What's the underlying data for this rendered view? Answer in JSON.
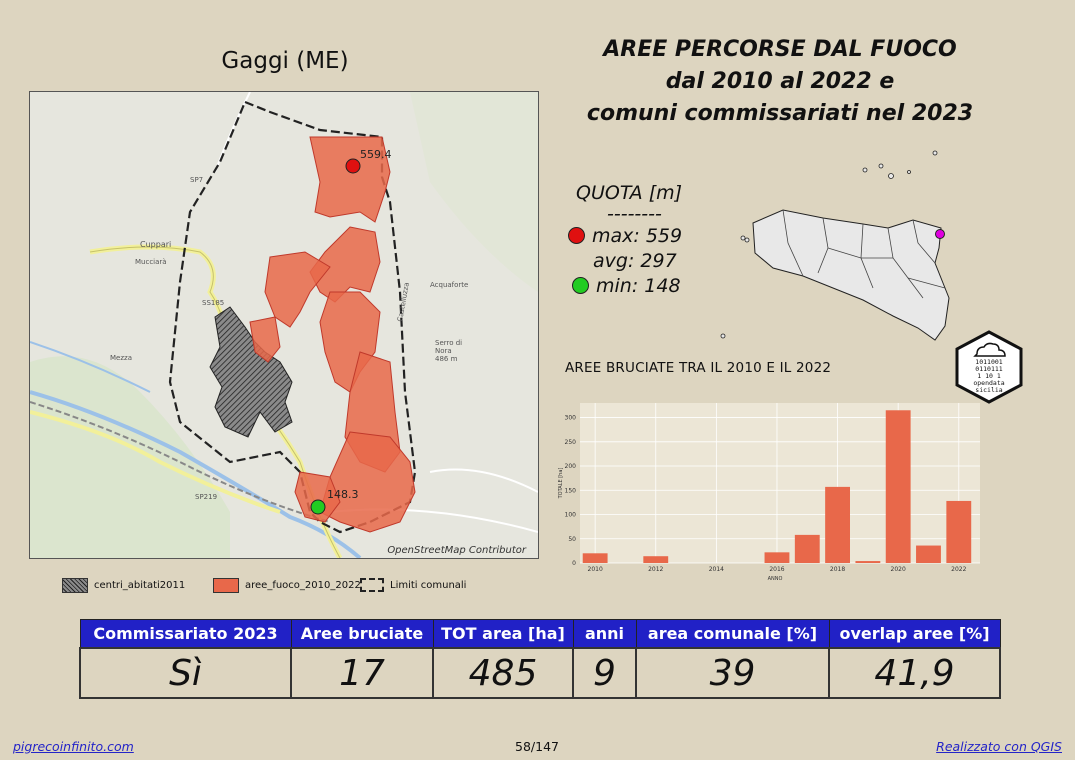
{
  "map": {
    "title": "Gaggi (ME)",
    "labels": [
      {
        "text": "559.4"
      },
      {
        "text": "148.3"
      },
      {
        "text": "SP7"
      },
      {
        "text": "Cuppari"
      },
      {
        "text": "Mucciarà"
      },
      {
        "text": "SS185"
      },
      {
        "text": "Acquaforte"
      },
      {
        "text": "Serro di"
      },
      {
        "text": "Nora"
      },
      {
        "text": "486 m"
      },
      {
        "text": "Mezza"
      },
      {
        "text": "SP219"
      },
      {
        "text": "Castelluzza"
      }
    ],
    "osm_credit": "OpenStreetMap Contributor"
  },
  "legend": {
    "items": [
      {
        "label": "centri_abitati2011",
        "swatch": "hatched-dark"
      },
      {
        "label": "aree_fuoco_2010_2022",
        "swatch": "#e8684a"
      },
      {
        "label": "Limiti comunali",
        "swatch": "dashed-outline"
      }
    ]
  },
  "main_title": {
    "line1": "AREE PERCORSE DAL FUOCO",
    "line2": "dal 2010 al 2022 e",
    "line3": "comuni commissariati nel 2023"
  },
  "quota": {
    "title": "QUOTA [m]",
    "separator": "--------",
    "max_label": "max: 559",
    "avg_label": "avg: 297",
    "min_label": "min: 148",
    "max_color": "#e01010",
    "min_color": "#22cc22"
  },
  "logo": {
    "line1": "1011001",
    "line2": "0110111",
    "line3": "1  10 1",
    "line4": "opendata",
    "line5": "sicilia"
  },
  "chart_title": "AREE BRUCIATE TRA IL 2010 E IL 2022",
  "chart_data": {
    "type": "bar",
    "title": "AREE BRUCIATE TRA IL 2010 E IL 2022",
    "xlabel": "ANNO",
    "ylabel": "TOTALE [ha]",
    "x": [
      2010,
      2011,
      2012,
      2013,
      2014,
      2015,
      2016,
      2017,
      2018,
      2019,
      2020,
      2021,
      2022
    ],
    "values": [
      20,
      0,
      14,
      0,
      0,
      0,
      22,
      58,
      157,
      4,
      315,
      36,
      128
    ],
    "xticks": [
      2010,
      2012,
      2014,
      2016,
      2018,
      2020,
      2022
    ],
    "yticks": [
      0,
      50,
      100,
      150,
      200,
      250,
      300
    ],
    "ylim": [
      0,
      330
    ],
    "bar_color": "#e8684a",
    "grid": true
  },
  "table": {
    "headers": [
      "Commissariato 2023",
      "Aree bruciate",
      "TOT area [ha]",
      "anni",
      "area comunale [%]",
      "overlap aree [%]"
    ],
    "values": [
      "Sì",
      "17",
      "485",
      "9",
      "39",
      "41,9"
    ]
  },
  "footer": {
    "left": "pigrecoinfinito.com",
    "center": "58/147",
    "right": "Realizzato con QGIS"
  }
}
